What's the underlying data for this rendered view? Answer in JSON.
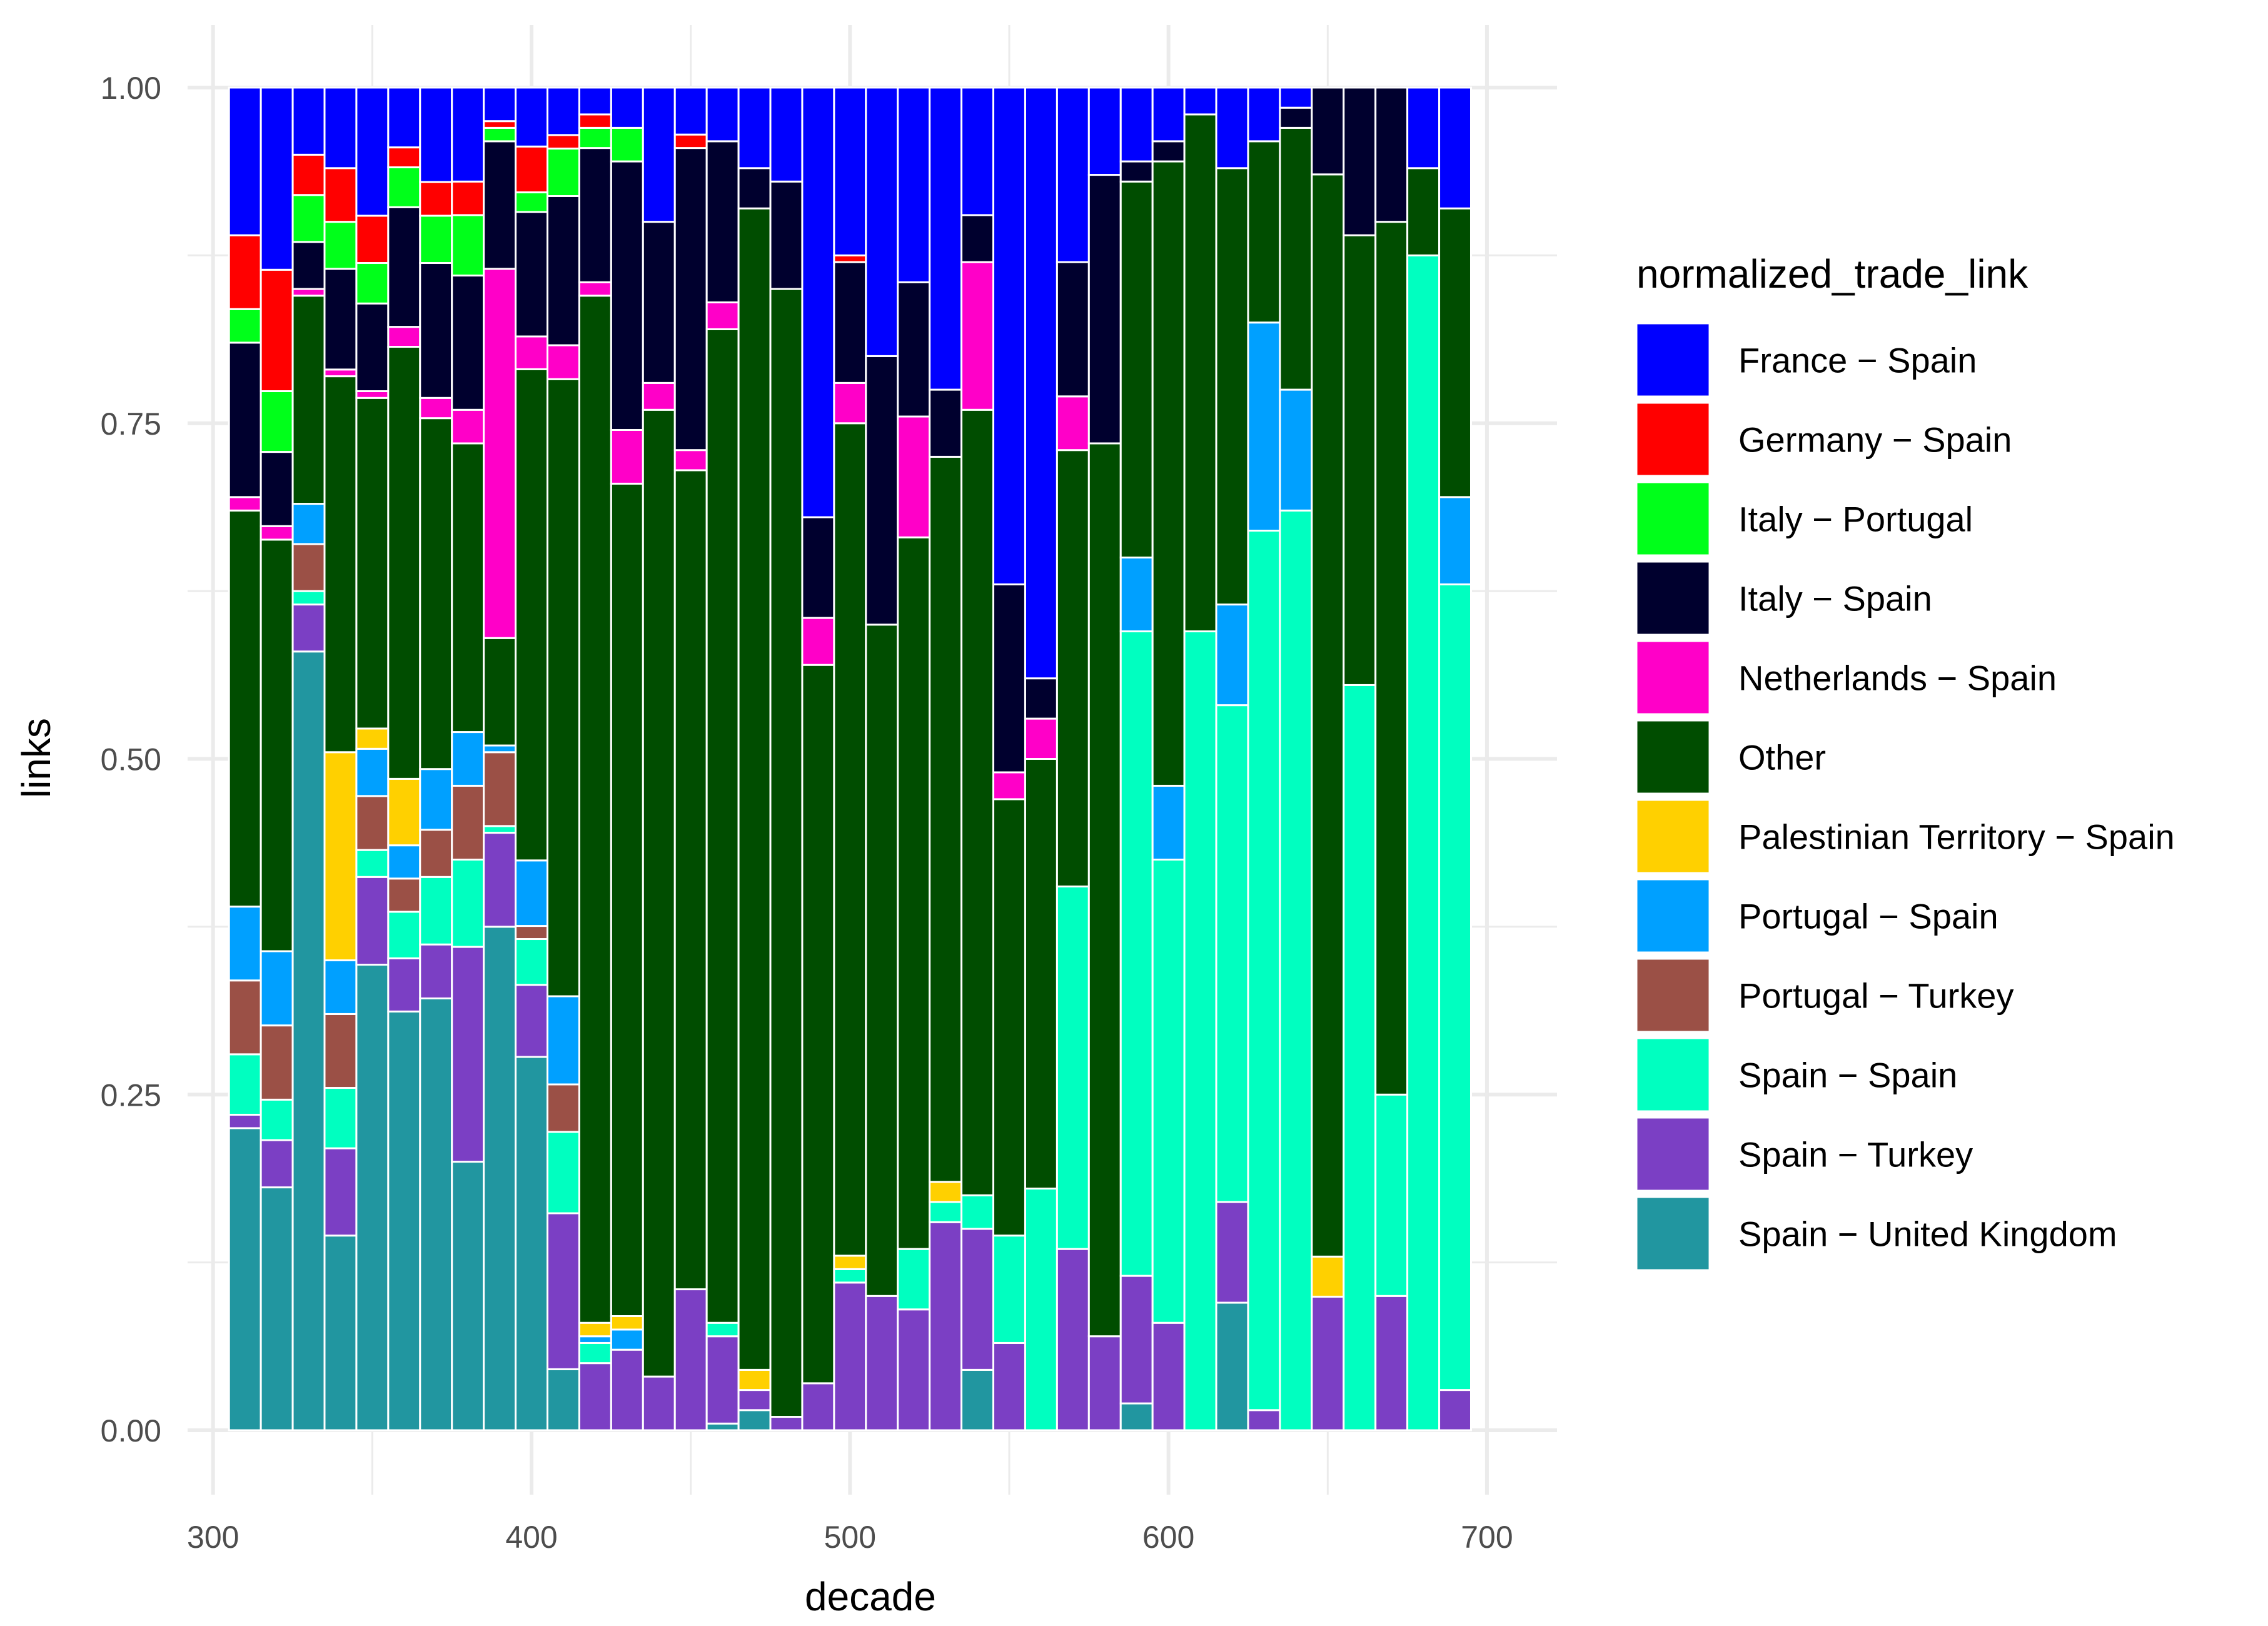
{
  "chart_data": {
    "type": "bar",
    "stacked": true,
    "normalized": true,
    "xlabel": "decade",
    "ylabel": "links",
    "xlim": [
      300,
      700
    ],
    "ylim": [
      0,
      1
    ],
    "x_ticks": [
      300,
      400,
      500,
      600,
      700
    ],
    "y_ticks": [
      0,
      0.25,
      0.5,
      0.75,
      1
    ],
    "y_tick_labels": [
      "0.00",
      "0.25",
      "0.50",
      "0.75",
      "1.00"
    ],
    "grid": true,
    "legend": {
      "title": "normalized_trade_link",
      "position": "right"
    },
    "series": [
      {
        "name": "Spain − United Kingdom",
        "color": "#2196A0"
      },
      {
        "name": "Spain − Turkey",
        "color": "#7B3FC4"
      },
      {
        "name": "Spain − Spain",
        "color": "#00FFC0"
      },
      {
        "name": "Portugal − Turkey",
        "color": "#9B5046"
      },
      {
        "name": "Portugal − Spain",
        "color": "#00A0FF"
      },
      {
        "name": "Palestinian Territory − Spain",
        "color": "#FFD000"
      },
      {
        "name": "Other",
        "color": "#004D00"
      },
      {
        "name": "Netherlands − Spain",
        "color": "#FF00C8"
      },
      {
        "name": "Italy − Spain",
        "color": "#00002E"
      },
      {
        "name": "Italy − Portugal",
        "color": "#00FF1A"
      },
      {
        "name": "Germany − Spain",
        "color": "#FF0000"
      },
      {
        "name": "France − Spain",
        "color": "#0000FF"
      }
    ],
    "legend_order": [
      "France − Spain",
      "Germany − Spain",
      "Italy − Portugal",
      "Italy − Spain",
      "Netherlands − Spain",
      "Other",
      "Palestinian Territory − Spain",
      "Portugal − Spain",
      "Portugal − Turkey",
      "Spain − Spain",
      "Spain − Turkey",
      "Spain − United Kingdom"
    ],
    "bars": [
      {
        "x": 310,
        "values": [
          0.225,
          0.01,
          0.045,
          0.055,
          0.055,
          0,
          0.295,
          0.01,
          0.115,
          0.025,
          0.055,
          0.11
        ]
      },
      {
        "x": 320,
        "values": [
          0.18,
          0.035,
          0.03,
          0.055,
          0.055,
          0,
          0.305,
          0.01,
          0.055,
          0.045,
          0.09,
          0.135
        ]
      },
      {
        "x": 330,
        "values": [
          0.58,
          0.035,
          0.01,
          0.035,
          0.03,
          0,
          0.155,
          0.005,
          0.035,
          0.035,
          0.03,
          0.05
        ]
      },
      {
        "x": 340,
        "values": [
          0.145,
          0.065,
          0.045,
          0.055,
          0.04,
          0.155,
          0.28,
          0.005,
          0.075,
          0.035,
          0.04,
          0.06
        ]
      },
      {
        "x": 350,
        "values": [
          0.345,
          0.065,
          0.02,
          0.04,
          0.035,
          0.015,
          0.245,
          0.005,
          0.065,
          0.03,
          0.035,
          0.095
        ]
      },
      {
        "x": 360,
        "values": [
          0.315,
          0.04,
          0.035,
          0.025,
          0.025,
          0.05,
          0.325,
          0.015,
          0.09,
          0.03,
          0.015,
          0.045
        ]
      },
      {
        "x": 370,
        "values": [
          0.32,
          0.04,
          0.05,
          0.035,
          0.045,
          0,
          0.26,
          0.015,
          0.1,
          0.035,
          0.025,
          0.07
        ]
      },
      {
        "x": 380,
        "values": [
          0.2,
          0.16,
          0.065,
          0.055,
          0.04,
          0,
          0.215,
          0.025,
          0.1,
          0.045,
          0.025,
          0.07
        ]
      },
      {
        "x": 390,
        "values": [
          0.375,
          0.07,
          0.005,
          0.055,
          0.005,
          0,
          0.08,
          0.275,
          0.095,
          0.01,
          0.005,
          0.025
        ]
      },
      {
        "x": 400,
        "values": [
          0.285,
          0.055,
          0.035,
          0.01,
          0.05,
          0,
          0.375,
          0.025,
          0.095,
          0.015,
          0.035,
          0.045
        ]
      },
      {
        "x": 410,
        "values": [
          0.045,
          0.115,
          0.06,
          0.035,
          0.065,
          0,
          0.455,
          0.025,
          0.11,
          0.035,
          0.01,
          0.035
        ]
      },
      {
        "x": 420,
        "values": [
          0,
          0.05,
          0.015,
          0,
          0.005,
          0.01,
          0.765,
          0.01,
          0.1,
          0.015,
          0.01,
          0.02
        ]
      },
      {
        "x": 430,
        "values": [
          0,
          0.06,
          0,
          0,
          0.015,
          0.01,
          0.62,
          0.04,
          0.2,
          0.025,
          0,
          0.03
        ]
      },
      {
        "x": 440,
        "values": [
          0,
          0.04,
          0,
          0,
          0,
          0,
          0.72,
          0.02,
          0.12,
          0,
          0,
          0.1
        ]
      },
      {
        "x": 450,
        "values": [
          0,
          0.105,
          0,
          0,
          0,
          0,
          0.61,
          0.015,
          0.225,
          0,
          0.01,
          0.035
        ]
      },
      {
        "x": 460,
        "values": [
          0.005,
          0.065,
          0.01,
          0,
          0,
          0,
          0.74,
          0.02,
          0.12,
          0,
          0,
          0.04
        ]
      },
      {
        "x": 470,
        "values": [
          0.015,
          0.015,
          0,
          0,
          0,
          0.015,
          0.865,
          0,
          0.03,
          0,
          0,
          0.06
        ]
      },
      {
        "x": 480,
        "values": [
          0,
          0.01,
          0,
          0,
          0,
          0,
          0.84,
          0,
          0.08,
          0,
          0,
          0.07
        ]
      },
      {
        "x": 490,
        "values": [
          0,
          0.035,
          0,
          0,
          0,
          0,
          0.535,
          0.035,
          0.075,
          0,
          0,
          0.32
        ]
      },
      {
        "x": 500,
        "values": [
          0,
          0.11,
          0.01,
          0,
          0,
          0.01,
          0.62,
          0.03,
          0.09,
          0,
          0.005,
          0.125
        ]
      },
      {
        "x": 510,
        "values": [
          0,
          0.1,
          0,
          0,
          0,
          0,
          0.5,
          0,
          0.2,
          0,
          0,
          0.2
        ]
      },
      {
        "x": 520,
        "values": [
          0,
          0.09,
          0.045,
          0,
          0,
          0,
          0.53,
          0.09,
          0.1,
          0,
          0,
          0.145
        ]
      },
      {
        "x": 530,
        "values": [
          0,
          0.155,
          0.015,
          0,
          0,
          0.015,
          0.54,
          0,
          0.05,
          0,
          0,
          0.225
        ]
      },
      {
        "x": 540,
        "values": [
          0.045,
          0.105,
          0.025,
          0,
          0,
          0,
          0.585,
          0.11,
          0.035,
          0,
          0,
          0.095
        ]
      },
      {
        "x": 550,
        "values": [
          0,
          0.065,
          0.08,
          0,
          0,
          0,
          0.325,
          0.02,
          0.14,
          0,
          0,
          0.37
        ]
      },
      {
        "x": 560,
        "values": [
          0,
          0,
          0.18,
          0,
          0,
          0,
          0.32,
          0.03,
          0.03,
          0,
          0,
          0.44
        ]
      },
      {
        "x": 570,
        "values": [
          0,
          0.135,
          0.27,
          0,
          0,
          0,
          0.325,
          0.04,
          0.1,
          0,
          0,
          0.13
        ]
      },
      {
        "x": 580,
        "values": [
          0,
          0.07,
          0,
          0,
          0,
          0,
          0.665,
          0,
          0.2,
          0,
          0,
          0.065
        ]
      },
      {
        "x": 590,
        "values": [
          0.02,
          0.095,
          0.48,
          0,
          0.055,
          0,
          0.28,
          0,
          0.015,
          0,
          0,
          0.055
        ]
      },
      {
        "x": 600,
        "values": [
          0,
          0.08,
          0.345,
          0,
          0.055,
          0,
          0.465,
          0,
          0.015,
          0,
          0,
          0.04
        ]
      },
      {
        "x": 610,
        "values": [
          0,
          0,
          0.595,
          0,
          0,
          0,
          0.385,
          0,
          0,
          0,
          0,
          0.02
        ]
      },
      {
        "x": 620,
        "values": [
          0.095,
          0.075,
          0.37,
          0,
          0.075,
          0,
          0.325,
          0,
          0,
          0,
          0,
          0.06
        ]
      },
      {
        "x": 630,
        "values": [
          0,
          0.015,
          0.655,
          0,
          0.155,
          0,
          0.135,
          0,
          0,
          0,
          0,
          0.04
        ]
      },
      {
        "x": 640,
        "values": [
          0,
          0,
          0.685,
          0,
          0.09,
          0,
          0.195,
          0,
          0.015,
          0,
          0,
          0.015
        ]
      },
      {
        "x": 650,
        "values": [
          0,
          0.1,
          0,
          0,
          0,
          0.03,
          0.81,
          0,
          0.065,
          0,
          0,
          0
        ]
      },
      {
        "x": 660,
        "values": [
          0,
          0,
          0.555,
          0,
          0,
          0,
          0.335,
          0,
          0.11,
          0,
          0,
          0
        ]
      },
      {
        "x": 670,
        "values": [
          0,
          0.1,
          0.15,
          0,
          0,
          0,
          0.65,
          0,
          0.1,
          0,
          0,
          0
        ]
      },
      {
        "x": 680,
        "values": [
          0,
          0,
          0.875,
          0,
          0,
          0,
          0.065,
          0,
          0,
          0,
          0,
          0.06
        ]
      },
      {
        "x": 690,
        "values": [
          0,
          0.03,
          0.6,
          0,
          0.065,
          0,
          0.215,
          0,
          0,
          0,
          0,
          0.09
        ]
      }
    ]
  }
}
